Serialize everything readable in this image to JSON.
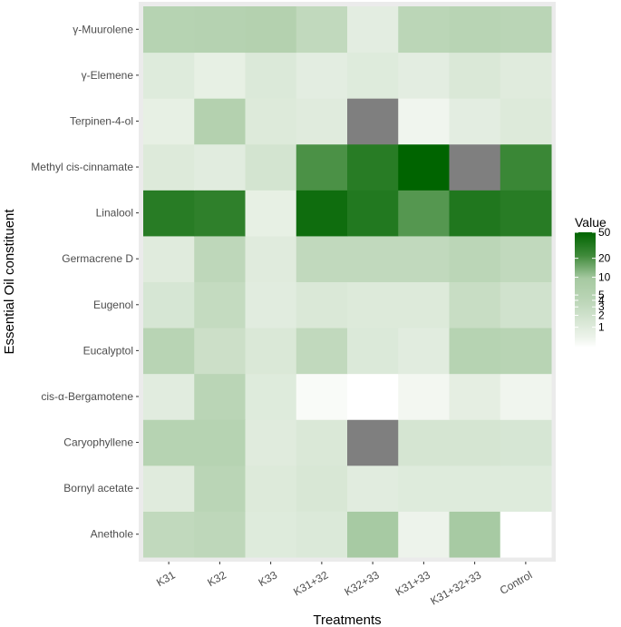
{
  "chart_data": {
    "type": "heatmap",
    "xlabel": "Treatments",
    "ylabel": "Essential Oil constituent",
    "x_categories": [
      "K31",
      "K32",
      "K33",
      "K31+32",
      "K32+33",
      "K31+33",
      "K31+32+33",
      "Control"
    ],
    "y_categories": [
      "Anethole",
      "Bornyl acetate",
      "Caryophyllene",
      "cis-α-Bergamotene",
      "Eucalyptol",
      "Eugenol",
      "Germacrene D",
      "Linalool",
      "Methyl cis-cinnamate",
      "Terpinen-4-ol",
      "γ-Elemene",
      "γ-Muurolene"
    ],
    "values": [
      [
        4.5,
        5,
        1.3,
        1.5,
        14,
        0.5,
        14,
        0
      ],
      [
        1.2,
        6,
        1.4,
        1.8,
        1.1,
        1.3,
        1.3,
        1.3
      ],
      [
        7,
        7,
        1.2,
        1.6,
        null,
        2,
        2,
        1.9
      ],
      [
        1.1,
        6,
        1.3,
        0.15,
        0,
        0.3,
        0.9,
        0.4
      ],
      [
        6.5,
        3,
        1.6,
        4.5,
        1.5,
        1.1,
        7,
        6.5
      ],
      [
        1.9,
        4,
        1.1,
        1.6,
        1.4,
        1.4,
        3.5,
        2.5
      ],
      [
        1.2,
        5,
        1.2,
        4.5,
        4.5,
        4.5,
        5.5,
        4.5
      ],
      [
        55,
        50,
        0.8,
        80,
        60,
        32,
        62,
        55
      ],
      [
        1.4,
        1.1,
        2.2,
        35,
        55,
        100,
        null,
        42
      ],
      [
        0.8,
        8,
        1.4,
        1.2,
        null,
        0.4,
        1.0,
        1.4
      ],
      [
        1.3,
        0.8,
        1.5,
        1.0,
        1.3,
        1.0,
        1.6,
        1.2
      ],
      [
        7,
        7.5,
        8,
        4.5,
        1.0,
        5.5,
        6.5,
        6
      ]
    ],
    "colorbar": {
      "title": "Value",
      "ticks": [
        "50",
        "20",
        "10",
        "5",
        "4",
        "3",
        "2",
        "1"
      ],
      "low_color": "#ffffff",
      "high_color": "#006400",
      "na_color": "#7f7f7f"
    },
    "grid": true,
    "legend_position": "right"
  }
}
